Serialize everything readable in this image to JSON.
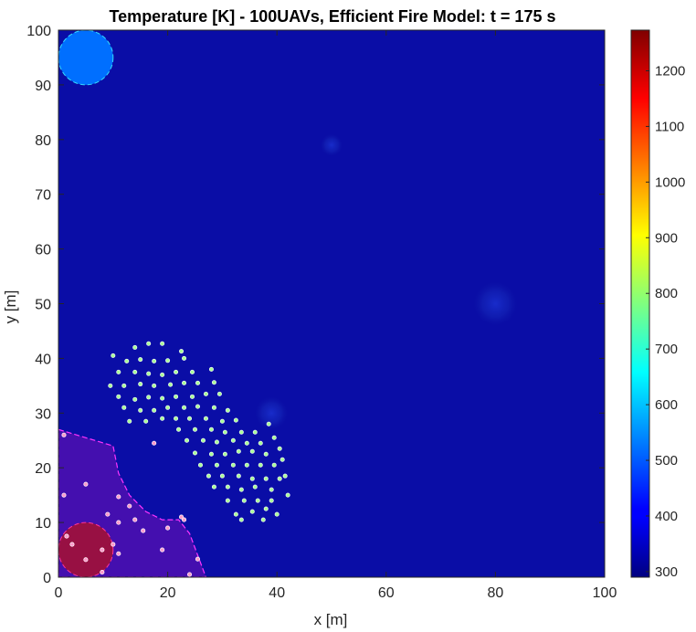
{
  "chart_data": {
    "type": "heatmap",
    "title": "Temperature [K] - 100UAVs, Efficient Fire Model: t = 175 s",
    "xlabel": "x [m]",
    "ylabel": "y [m]",
    "xlim": [
      0,
      100
    ],
    "ylim": [
      0,
      100
    ],
    "x_ticks": [
      "0",
      "20",
      "40",
      "60",
      "80",
      "100"
    ],
    "y_ticks": [
      "0",
      "10",
      "20",
      "30",
      "40",
      "50",
      "60",
      "70",
      "80",
      "90",
      "100"
    ],
    "colorbar": {
      "colormap": "jet",
      "range": [
        290,
        1273
      ],
      "ticks": [
        "300",
        "400",
        "500",
        "600",
        "700",
        "800",
        "900",
        "1000",
        "1100",
        "1200"
      ]
    },
    "background_temperature": 300,
    "hot_spots": [
      {
        "x": 5,
        "y": 95,
        "radius": 5,
        "temperature": 520
      },
      {
        "x": 5,
        "y": 5,
        "radius": 5,
        "temperature": 1273
      },
      {
        "x": 50,
        "y": 79,
        "radius": 2,
        "temperature": 330
      },
      {
        "x": 80,
        "y": 50,
        "radius": 4,
        "temperature": 315
      },
      {
        "x": 39,
        "y": 30,
        "radius": 3,
        "temperature": 320
      }
    ],
    "burnt_region_boundary": [
      [
        0,
        27
      ],
      [
        10,
        24
      ],
      [
        11,
        19
      ],
      [
        13,
        15
      ],
      [
        16,
        12
      ],
      [
        19,
        10.5
      ],
      [
        22,
        10.5
      ],
      [
        24,
        8
      ],
      [
        27,
        0
      ],
      [
        0,
        0
      ]
    ],
    "uavs_tracking": [
      [
        14,
        42
      ],
      [
        16.5,
        42.7
      ],
      [
        19,
        42.7
      ],
      [
        22.5,
        41.3
      ],
      [
        10,
        40.5
      ],
      [
        12.5,
        39.5
      ],
      [
        15,
        39.8
      ],
      [
        17.5,
        39.5
      ],
      [
        20,
        39.6
      ],
      [
        23,
        40
      ],
      [
        11,
        37.5
      ],
      [
        14,
        37.5
      ],
      [
        16.5,
        37.2
      ],
      [
        19,
        37
      ],
      [
        21.5,
        37.5
      ],
      [
        24.5,
        37.5
      ],
      [
        28,
        38
      ],
      [
        9.5,
        35
      ],
      [
        12,
        35
      ],
      [
        15,
        35.3
      ],
      [
        17.5,
        35
      ],
      [
        20.5,
        35.2
      ],
      [
        23,
        35.5
      ],
      [
        25.5,
        35.5
      ],
      [
        28.5,
        35.6
      ],
      [
        11,
        33
      ],
      [
        14,
        32.5
      ],
      [
        16.5,
        32.9
      ],
      [
        19,
        32.7
      ],
      [
        21.5,
        33
      ],
      [
        24.5,
        33
      ],
      [
        27,
        33.5
      ],
      [
        29.5,
        33.5
      ],
      [
        12,
        31
      ],
      [
        15,
        30.5
      ],
      [
        17.5,
        30.5
      ],
      [
        20,
        31
      ],
      [
        23,
        31
      ],
      [
        25.5,
        31.2
      ],
      [
        28.5,
        31
      ],
      [
        31,
        30.5
      ],
      [
        13,
        28.5
      ],
      [
        16,
        28.5
      ],
      [
        19,
        29
      ],
      [
        21.5,
        29
      ],
      [
        24,
        29
      ],
      [
        27,
        29
      ],
      [
        30,
        28.5
      ],
      [
        32.5,
        28.7
      ],
      [
        22,
        27
      ],
      [
        25,
        27
      ],
      [
        28,
        27
      ],
      [
        30.5,
        26.5
      ],
      [
        33.5,
        26.5
      ],
      [
        36,
        26.5
      ],
      [
        38.5,
        28
      ],
      [
        23.5,
        25
      ],
      [
        26.5,
        25
      ],
      [
        29,
        24.7
      ],
      [
        32,
        25
      ],
      [
        34.5,
        24.5
      ],
      [
        37,
        24.5
      ],
      [
        39.5,
        25.5
      ],
      [
        25,
        22.7
      ],
      [
        28,
        22.5
      ],
      [
        30.5,
        22.5
      ],
      [
        33,
        23
      ],
      [
        35.5,
        23
      ],
      [
        38,
        22.5
      ],
      [
        40.5,
        23.5
      ],
      [
        26,
        20.5
      ],
      [
        29,
        20.5
      ],
      [
        32,
        20.5
      ],
      [
        34.5,
        20.5
      ],
      [
        37,
        20.5
      ],
      [
        39.5,
        20.5
      ],
      [
        41,
        21.5
      ],
      [
        27.5,
        18.5
      ],
      [
        30,
        18.5
      ],
      [
        33,
        18.5
      ],
      [
        35.5,
        18
      ],
      [
        38,
        18
      ],
      [
        40.5,
        18
      ],
      [
        28.5,
        16.5
      ],
      [
        31,
        16.5
      ],
      [
        33.5,
        16
      ],
      [
        36,
        16.5
      ],
      [
        39,
        16
      ],
      [
        41.5,
        18.5
      ],
      [
        31,
        14
      ],
      [
        34,
        14
      ],
      [
        36.5,
        14
      ],
      [
        39,
        14
      ],
      [
        42,
        15
      ],
      [
        32.5,
        11.5
      ],
      [
        35.5,
        12
      ],
      [
        38,
        12.5
      ],
      [
        40,
        11.5
      ],
      [
        33.5,
        10.5
      ],
      [
        37.5,
        10.5
      ]
    ],
    "uavs_in_burnt_region": [
      [
        1,
        26
      ],
      [
        5,
        17
      ],
      [
        1,
        15
      ],
      [
        11,
        14.7
      ],
      [
        13,
        13
      ],
      [
        9,
        11.5
      ],
      [
        14,
        10.5
      ],
      [
        11,
        10
      ],
      [
        15.5,
        8.5
      ],
      [
        20,
        9
      ],
      [
        22.5,
        11
      ],
      [
        23,
        10.5
      ],
      [
        1.5,
        7.5
      ],
      [
        2.5,
        6
      ],
      [
        19,
        5
      ],
      [
        8,
        5
      ],
      [
        10,
        6
      ],
      [
        11,
        4.3
      ],
      [
        5,
        3.2
      ],
      [
        25.5,
        3.3
      ],
      [
        8,
        0.9
      ],
      [
        24,
        0.5
      ],
      [
        17.5,
        24.5
      ]
    ]
  }
}
